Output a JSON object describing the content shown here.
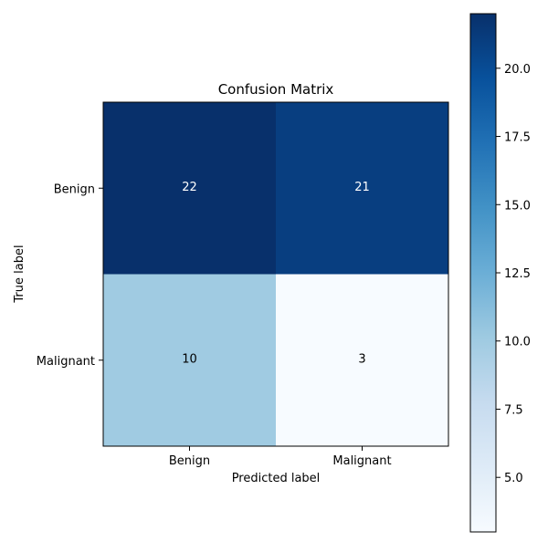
{
  "chart_data": {
    "type": "heatmap",
    "title": "Confusion Matrix",
    "xlabel": "Predicted label",
    "ylabel": "True label",
    "x_categories": [
      "Benign",
      "Malignant"
    ],
    "y_categories": [
      "Benign",
      "Malignant"
    ],
    "values": [
      [
        22,
        21
      ],
      [
        10,
        3
      ]
    ],
    "colormap": "Blues",
    "value_range": [
      3,
      22
    ],
    "colorbar": {
      "ticks": [
        5.0,
        7.5,
        10.0,
        12.5,
        15.0,
        17.5,
        20.0
      ],
      "tick_labels": [
        "5.0",
        "7.5",
        "10.0",
        "12.5",
        "15.0",
        "17.5",
        "20.0"
      ],
      "placement": "right"
    },
    "grid": false
  }
}
